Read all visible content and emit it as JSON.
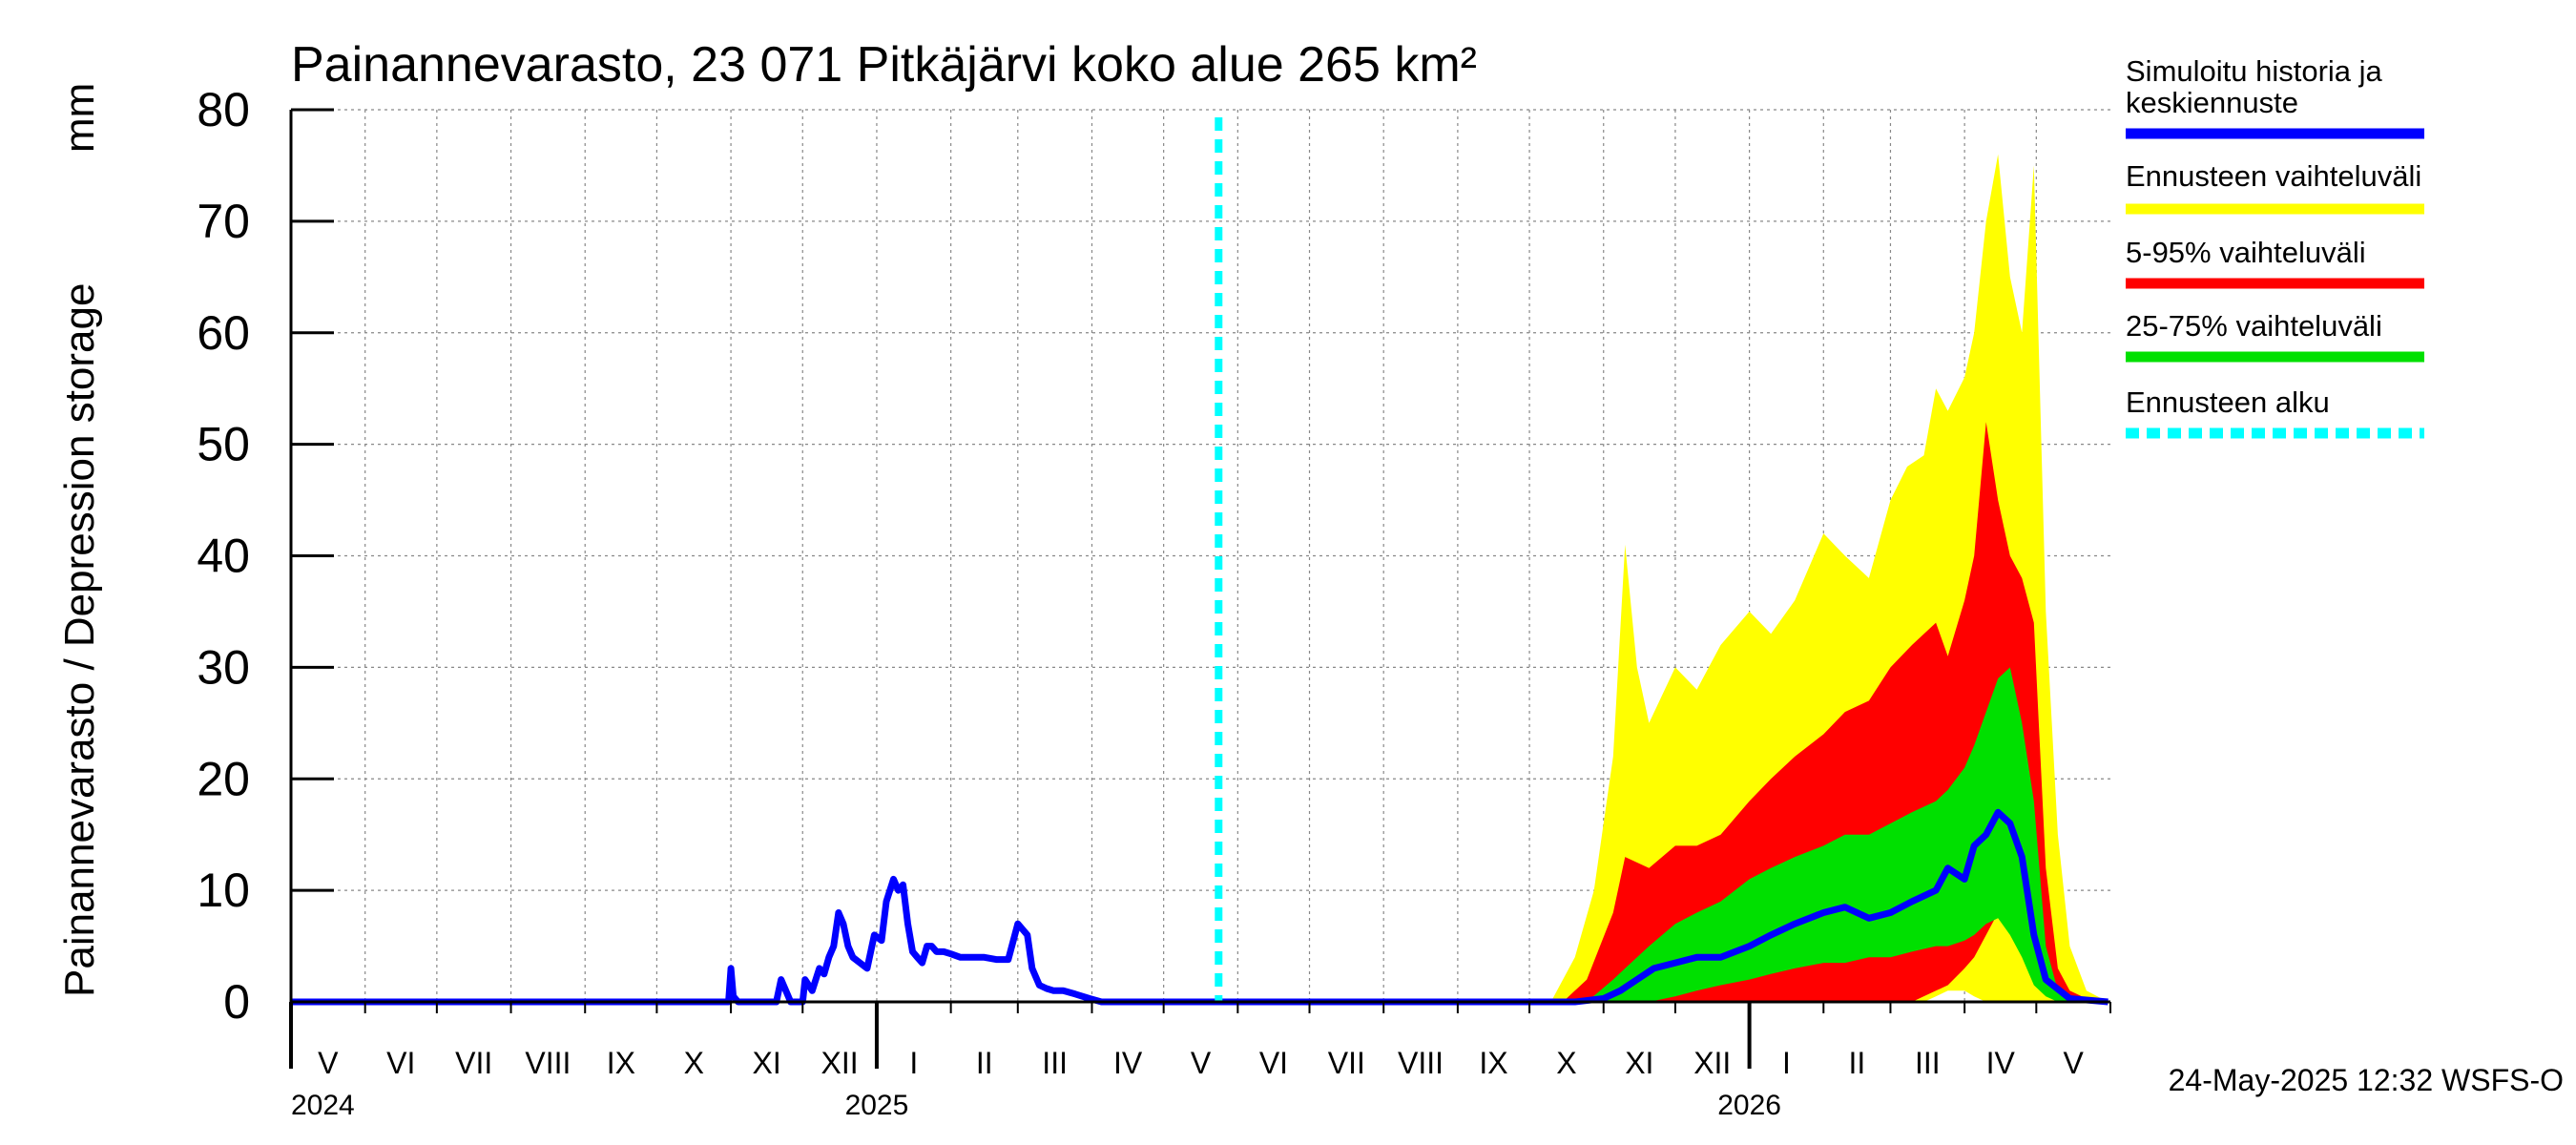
{
  "chart_data": {
    "type": "area",
    "title": "Painannevarasto, 23 071 Pitkäjärvi koko alue 265 km²",
    "ylabel": "Painannevarasto / Depression storage",
    "yunit": "mm",
    "ylim": [
      0,
      80
    ],
    "yticks": [
      0,
      10,
      20,
      30,
      40,
      50,
      60,
      70,
      80
    ],
    "xlim": [
      "2024-05-01",
      "2026-05-31"
    ],
    "month_labels": [
      "V",
      "VI",
      "VII",
      "VIII",
      "IX",
      "X",
      "XI",
      "XII",
      "I",
      "II",
      "III",
      "IV",
      "V",
      "VI",
      "VII",
      "VIII",
      "IX",
      "X",
      "XI",
      "XII",
      "I",
      "II",
      "III",
      "IV",
      "V"
    ],
    "year_labels": [
      {
        "year": "2024",
        "date": "2024-05-01"
      },
      {
        "year": "2025",
        "date": "2025-01-01"
      },
      {
        "year": "2026",
        "date": "2026-01-01"
      }
    ],
    "grid": true,
    "forecast_start": "2025-05-24",
    "series": [
      {
        "name": "Simuloitu historia ja keskiennuste",
        "kind": "line",
        "color": "#0000ff",
        "x": [
          "2024-05-01",
          "2024-10-31",
          "2024-11-01",
          "2024-11-02",
          "2024-11-04",
          "2024-11-20",
          "2024-11-22",
          "2024-11-24",
          "2024-11-26",
          "2024-11-28",
          "2024-12-01",
          "2024-12-02",
          "2024-12-05",
          "2024-12-08",
          "2024-12-10",
          "2024-12-12",
          "2024-12-14",
          "2024-12-16",
          "2024-12-18",
          "2024-12-20",
          "2024-12-22",
          "2024-12-25",
          "2024-12-28",
          "2024-12-31",
          "2025-01-03",
          "2025-01-05",
          "2025-01-08",
          "2025-01-10",
          "2025-01-12",
          "2025-01-14",
          "2025-01-16",
          "2025-01-18",
          "2025-01-20",
          "2025-01-22",
          "2025-01-24",
          "2025-01-26",
          "2025-01-29",
          "2025-02-01",
          "2025-02-05",
          "2025-02-10",
          "2025-02-15",
          "2025-02-20",
          "2025-02-25",
          "2025-03-01",
          "2025-03-03",
          "2025-03-05",
          "2025-03-07",
          "2025-03-10",
          "2025-03-13",
          "2025-03-16",
          "2025-03-20",
          "2025-03-25",
          "2025-03-31",
          "2025-04-05",
          "2025-04-10",
          "2025-05-24",
          "2025-10-20",
          "2025-11-01",
          "2025-11-08",
          "2025-11-15",
          "2025-11-22",
          "2025-12-01",
          "2025-12-10",
          "2025-12-20",
          "2026-01-01",
          "2026-01-10",
          "2026-01-20",
          "2026-02-01",
          "2026-02-10",
          "2026-02-20",
          "2026-03-01",
          "2026-03-10",
          "2026-03-20",
          "2026-03-25",
          "2026-04-01",
          "2026-04-05",
          "2026-04-10",
          "2026-04-15",
          "2026-04-20",
          "2026-04-25",
          "2026-04-30",
          "2026-05-05",
          "2026-05-15",
          "2026-05-31"
        ],
        "y": [
          0,
          0,
          3,
          0.5,
          0,
          0,
          2,
          1,
          0,
          0,
          0,
          2,
          1,
          3,
          2.5,
          4,
          5,
          8,
          7,
          5,
          4,
          3.5,
          3,
          6,
          5.5,
          9,
          11,
          10,
          10.5,
          7,
          4.5,
          4,
          3.5,
          5,
          5,
          4.5,
          4.5,
          4.3,
          4,
          4,
          4,
          3.8,
          3.8,
          7,
          6.5,
          6,
          3,
          1.5,
          1.2,
          1,
          1,
          0.7,
          0.3,
          0,
          0,
          0,
          0,
          0.3,
          1,
          2,
          3,
          3.5,
          4,
          4,
          5,
          6,
          7,
          8,
          8.5,
          7.5,
          8,
          9,
          10,
          12,
          11,
          14,
          15,
          17,
          16,
          13,
          6,
          2,
          0.3,
          0
        ]
      },
      {
        "name": "Ennusteen vaihteluväli",
        "kind": "band",
        "color": "#ffff00",
        "x": [
          "2025-10-10",
          "2025-10-20",
          "2025-10-28",
          "2025-11-05",
          "2025-11-10",
          "2025-11-15",
          "2025-11-20",
          "2025-12-01",
          "2025-12-10",
          "2025-12-20",
          "2026-01-01",
          "2026-01-10",
          "2026-01-20",
          "2026-02-01",
          "2026-02-10",
          "2026-02-20",
          "2026-03-01",
          "2026-03-08",
          "2026-03-15",
          "2026-03-20",
          "2026-03-25",
          "2026-04-01",
          "2026-04-05",
          "2026-04-10",
          "2026-04-15",
          "2026-04-20",
          "2026-04-25",
          "2026-04-30",
          "2026-05-05",
          "2026-05-10",
          "2026-05-15",
          "2026-05-22",
          "2026-05-31"
        ],
        "upper": [
          0,
          4,
          10,
          22,
          41,
          30,
          25,
          30,
          28,
          32,
          35,
          33,
          36,
          42,
          40,
          38,
          45,
          48,
          49,
          55,
          53,
          56,
          60,
          70,
          76,
          65,
          60,
          75,
          35,
          15,
          5,
          1,
          0
        ],
        "lower": [
          0,
          0,
          0,
          0,
          0,
          0,
          0,
          0,
          0,
          0,
          0,
          0,
          0,
          0,
          0,
          0,
          0,
          0,
          0,
          0.5,
          1,
          1,
          0.5,
          0,
          0,
          0,
          0,
          0,
          0,
          0,
          0,
          0,
          0
        ]
      },
      {
        "name": "5-95% vaihteluväli",
        "kind": "band",
        "color": "#ff0000",
        "x": [
          "2025-10-15",
          "2025-10-25",
          "2025-11-05",
          "2025-11-10",
          "2025-11-20",
          "2025-12-01",
          "2025-12-10",
          "2025-12-20",
          "2026-01-01",
          "2026-01-10",
          "2026-01-20",
          "2026-02-01",
          "2026-02-10",
          "2026-02-20",
          "2026-03-01",
          "2026-03-10",
          "2026-03-20",
          "2026-03-25",
          "2026-04-01",
          "2026-04-05",
          "2026-04-10",
          "2026-04-15",
          "2026-04-20",
          "2026-04-25",
          "2026-04-30",
          "2026-05-05",
          "2026-05-10",
          "2026-05-15",
          "2026-05-22",
          "2026-05-31"
        ],
        "upper": [
          0,
          2,
          8,
          13,
          12,
          14,
          14,
          15,
          18,
          20,
          22,
          24,
          26,
          27,
          30,
          32,
          34,
          31,
          36,
          40,
          52,
          45,
          40,
          38,
          34,
          12,
          3,
          1,
          0.3,
          0
        ],
        "lower": [
          0,
          0,
          0,
          0,
          0,
          0,
          0,
          0,
          0,
          0,
          0,
          0,
          0,
          0,
          0,
          0,
          1,
          1.5,
          3,
          4,
          6,
          8,
          9,
          7,
          3,
          1,
          0.3,
          0,
          0,
          0
        ]
      },
      {
        "name": "25-75% vaihteluväli",
        "kind": "band",
        "color": "#00e000",
        "x": [
          "2025-10-25",
          "2025-11-05",
          "2025-11-10",
          "2025-11-20",
          "2025-12-01",
          "2025-12-10",
          "2025-12-20",
          "2026-01-01",
          "2026-01-10",
          "2026-01-20",
          "2026-02-01",
          "2026-02-10",
          "2026-02-20",
          "2026-03-01",
          "2026-03-10",
          "2026-03-20",
          "2026-03-25",
          "2026-04-01",
          "2026-04-05",
          "2026-04-10",
          "2026-04-15",
          "2026-04-20",
          "2026-04-25",
          "2026-04-30",
          "2026-05-05",
          "2026-05-10",
          "2026-05-15",
          "2026-05-22"
        ],
        "upper": [
          0,
          2,
          3,
          5,
          7,
          8,
          9,
          11,
          12,
          13,
          14,
          15,
          15,
          16,
          17,
          18,
          19,
          21,
          23,
          26,
          29,
          30,
          25,
          18,
          5,
          1,
          0.3,
          0
        ],
        "lower": [
          0,
          0,
          0,
          0,
          0.5,
          1,
          1.5,
          2,
          2.5,
          3,
          3.5,
          3.5,
          4,
          4,
          4.5,
          5,
          5,
          5.5,
          6,
          7,
          7.5,
          6,
          4,
          1.5,
          0.5,
          0,
          0,
          0
        ]
      },
      {
        "name": "Ennusteen alku",
        "kind": "vline",
        "color": "#00ffff",
        "x": "2025-05-24"
      }
    ]
  },
  "footer": "24-May-2025 12:32 WSFS-O"
}
